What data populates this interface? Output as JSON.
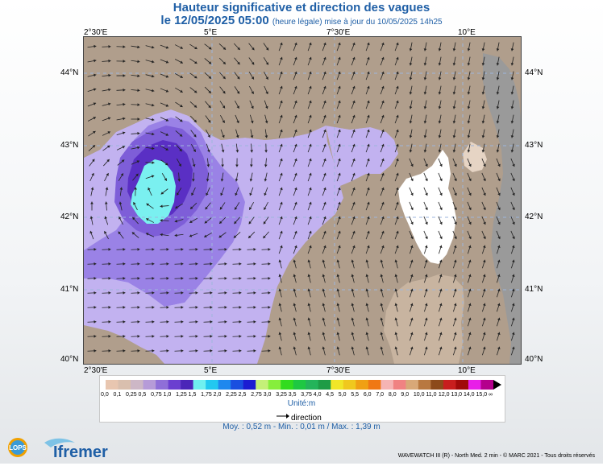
{
  "header": {
    "title": "Hauteur significative et direction des vagues",
    "subtitle_main": "le 12/05/2025 05:00",
    "subtitle_note": "(heure légale) mise à jour du 10/05/2025 14h25"
  },
  "axes": {
    "lon_labels": [
      "2°30'E",
      "5°E",
      "7°30'E",
      "10°E"
    ],
    "lat_labels": [
      "44°N",
      "43°N",
      "42°N",
      "41°N",
      "40°N"
    ]
  },
  "legend": {
    "values": [
      "0,0",
      "0,1",
      "0,25",
      "0,5",
      "0,75",
      "1,0",
      "1,25",
      "1,5",
      "1,75",
      "2,0",
      "2,25",
      "2,5",
      "2,75",
      "3,0",
      "3,25",
      "3,5",
      "3,75",
      "4,0",
      "4,5",
      "5,0",
      "5,5",
      "6,0",
      "7,0",
      "8,0",
      "9,0",
      "10,0",
      "11,0",
      "12,0",
      "13,0",
      "14,0",
      "15,0",
      "∞"
    ],
    "colors": [
      "#e8c6b0",
      "#d9bfae",
      "#cdb7c6",
      "#b69bd8",
      "#8f6fd8",
      "#6b3fd0",
      "#4b26b8",
      "#6ff0f0",
      "#22c8f0",
      "#1e88ee",
      "#1a4fe0",
      "#1c1cd2",
      "#c4f078",
      "#86ee3c",
      "#32dc1e",
      "#1ec842",
      "#24b45a",
      "#1e9c46",
      "#f0e628",
      "#f0c81e",
      "#f0a014",
      "#f07814",
      "#f5b4b4",
      "#f08282",
      "#d8a878",
      "#b87840",
      "#8c4a1a",
      "#c81e1e",
      "#a00a0a",
      "#e81ee8",
      "#b4008c"
    ],
    "unit": "Unité:m",
    "direction_label": "direction"
  },
  "stats": {
    "text": "Moy. : 0,52 m   -   Min. : 0,01 m / Max. : 1,39 m"
  },
  "credits": {
    "text": "WAVEWATCH III (R) - North Med. 2 min - © MARC 2021 - Tous droits réservés"
  },
  "logos": {
    "lops": "LOPS",
    "ifremer": "Ifremer"
  },
  "map": {
    "colors": {
      "land": "#b09e8c",
      "land_light": "#c8b4a0",
      "land_pale": "#e6d4c4",
      "land_gray": "#9a9a9a",
      "sea_light": "#c2b2f0",
      "sea_mid": "#9a82e6",
      "sea_purple": "#7e5ed8",
      "sea_dark": "#5a2fc4",
      "sea_cyan": "#7af0f0",
      "corsica": "#ffffff",
      "grid": "#9eb6dc"
    }
  }
}
